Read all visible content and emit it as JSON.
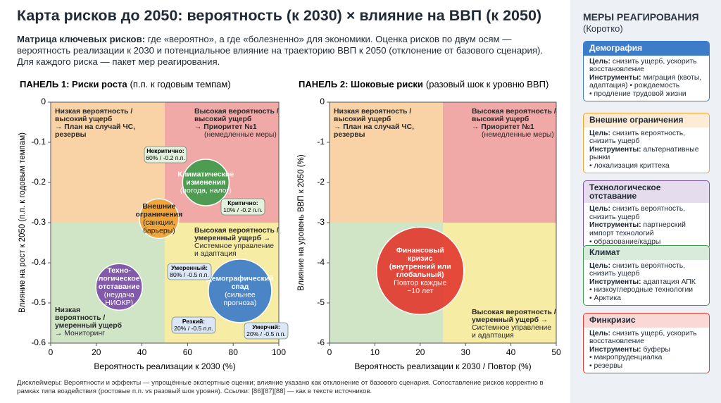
{
  "header": {
    "title": "Карта рисков до 2050: вероятность (к 2030) × влияние на ВВП (к 2050)",
    "intro_bold": "Матрица ключевых рисков:",
    "intro_text": "где «вероятно», а где «болезненно» для экономики. Оценка рисков по двум осям — вероятность реализации к 2030 и потенциальное влияние на траекторию ВВП к 2050 (отклонение от базового сценария). Для каждого риска — пакет мер реагирования."
  },
  "chart_data": [
    {
      "type": "bubble",
      "title_bold": "ПАНЕЛЬ 1: Риски роста",
      "title_note": "(п.п. к годовым темпам)",
      "x_label": "Вероятность реализации к 2030 (%)",
      "y_label": "Влияние на рост к 2050 (п.п. к годовым темпам)",
      "xlim": [
        0,
        100
      ],
      "ylim": [
        -0.6,
        0
      ],
      "xticks": [
        0,
        20,
        40,
        60,
        80,
        100
      ],
      "yticks": [
        0,
        -0.1,
        -0.2,
        -0.3,
        -0.4,
        -0.5,
        -0.6
      ],
      "quadrants": [
        {
          "x": [
            0,
            50
          ],
          "y": [
            -0.3,
            0
          ],
          "color": "#f9d3a6",
          "bold_lines": [
            "Низкая вероятность /",
            "высокий ущерб",
            "→ План на случай ЧС,",
            "резервы"
          ],
          "lines": []
        },
        {
          "x": [
            50,
            100
          ],
          "y": [
            -0.3,
            0
          ],
          "color": "#f0a9a6",
          "bold_lines": [
            "Высокая вероятность /",
            "высокий ущерб",
            "→ Приоритет №1"
          ],
          "lines": [
            "(немедленные меры)"
          ]
        },
        {
          "x": [
            0,
            50
          ],
          "y": [
            -0.6,
            -0.3
          ],
          "color": "#cfe5c6",
          "bold_lines": [
            "Низкая",
            "вероятность /",
            "умеренный ущерб"
          ],
          "lines": [
            "→ Мониторинг"
          ]
        },
        {
          "x": [
            50,
            100
          ],
          "y": [
            -0.6,
            -0.3
          ],
          "color": "#f7eca4",
          "bold_lines": [
            "Высокая вероятность /",
            "умеренный ущерб →"
          ],
          "lines": [
            "Системное управление",
            "и адаптация"
          ]
        }
      ],
      "points": [
        {
          "x": 68,
          "y": -0.2,
          "size": 33,
          "color": "#3f9b4b",
          "text_color": "#ffffff",
          "label": [
            "Климатические",
            "изменения"
          ],
          "note": [
            "(погода, налог)"
          ]
        },
        {
          "x": 47.5,
          "y": -0.29,
          "size": 28,
          "color": "#f0a232",
          "text_color": "#222222",
          "label": [
            "Внешние",
            "ограничения"
          ],
          "note": [
            "(санкции,",
            "барьеры)"
          ]
        },
        {
          "x": 30,
          "y": -0.46,
          "size": 33,
          "color": "#7b4ea6",
          "text_color": "#ffffff",
          "label": [
            "Техно-",
            "логическое",
            "отставание"
          ],
          "note": [
            "(неудача",
            "НИОКР)"
          ]
        },
        {
          "x": 83,
          "y": -0.47,
          "size": 45,
          "color": "#3d7cc9",
          "text_color": "#ffffff",
          "label": [
            "Демографический",
            "спад"
          ],
          "note": [
            "(сильнее",
            "прогноза)"
          ]
        }
      ],
      "annotations": [
        {
          "lines": [
            "Некритично:",
            "60% / -0.2 п.п."
          ],
          "color": "#e2f0dc"
        },
        {
          "lines": [
            "Критично:",
            "10% / -0.2 п.п."
          ],
          "color": "#e2f0dc"
        },
        {
          "lines": [
            "Умеренный:",
            "80% / -0.5 п.п."
          ],
          "color": "#dbe7f6"
        },
        {
          "lines": [
            "Резкий:",
            "20% / -0.5 п.п."
          ],
          "color": "#dbe7f6"
        },
        {
          "lines": [
            "Умерчий:",
            "20% / -0.5 п.п."
          ],
          "color": "#dbe7f6"
        }
      ]
    },
    {
      "type": "bubble",
      "title_bold": "ПАНЕЛЬ 2: Шоковые риски",
      "title_note": "(разовый шок к уровню ВВП)",
      "x_label": "Вероятность реализации к 2030 / Повтор (%)",
      "y_label": "Влияние на уровень ВВП к 2050 (%)",
      "xlim": [
        0,
        50
      ],
      "ylim": [
        -6,
        0
      ],
      "xticks": [
        0,
        10,
        20,
        30,
        40,
        50
      ],
      "yticks": [
        0,
        -1,
        -2,
        -3,
        -4,
        -5,
        -6
      ],
      "quadrants": [
        {
          "x": [
            0,
            25
          ],
          "y": [
            -3,
            0
          ],
          "color": "#f9d3a6",
          "bold_lines": [
            "Низкая вероятность /",
            "высокий ущерб",
            "→ План на случай ЧС,",
            "резервы"
          ],
          "lines": []
        },
        {
          "x": [
            25,
            50
          ],
          "y": [
            -3,
            0
          ],
          "color": "#f0a9a6",
          "bold_lines": [
            "Высокая вероятность /",
            "высокий ущерб",
            "→ Приоритет №1"
          ],
          "lines": [
            "(немедленные меры)"
          ]
        },
        {
          "x": [
            0,
            25
          ],
          "y": [
            -6,
            -3
          ],
          "color": "#cfe5c6",
          "bold_lines": [],
          "lines": []
        },
        {
          "x": [
            25,
            50
          ],
          "y": [
            -6,
            -3
          ],
          "color": "#f7eca4",
          "bold_lines": [
            "Высокая вероятность /",
            "умеренный ущерб →"
          ],
          "lines": [
            "Системное управление",
            "и адаптация"
          ]
        }
      ],
      "points": [
        {
          "x": 20,
          "y": -4.2,
          "size": 62,
          "color": "#e23b30",
          "text_color": "#ffffff",
          "label": [
            "Финансовый",
            "кризис",
            "(внутренний или",
            "глобальный)"
          ],
          "note": [
            "Повтор каждые",
            "~10 лет"
          ]
        }
      ],
      "annotations": []
    }
  ],
  "disclaimer": "Дисклеймеры: Вероятности и эффекты — упрощённые экспертные оценки; влияние указано как отклонение от базового сценария. Сопоставление рисков корректно в рамках типа воздействия (ростовые п.п. vs разовый шок уровня). Ссылки: [86][87][88] — как в тексте источников.",
  "sidebar": {
    "title": "МЕРЫ РЕАГИРОВАНИЯ",
    "subtitle": "(Коротко)",
    "goal_label": "Цель:",
    "tools_label": "Инструменты:",
    "cards": [
      {
        "title": "Демография",
        "color": "#3d7cc9",
        "goal": "снизить ущерб, ускорить восстановление",
        "tools": "миграция (квоты, адаптация) • рождаемость",
        "bullets": [
          "продление трудовой жизни"
        ]
      },
      {
        "title": "Внешние ограничения",
        "color": "#f0a232",
        "goal": "снизить вероятность, снизить ущерб",
        "tools": "альтернативные рынки",
        "bullets": [
          "локализация криттеха"
        ]
      },
      {
        "title": "Технологическое отставание",
        "color": "#7b4ea6",
        "goal": "снизить вероятность, снизить ущерб",
        "tools": "партнерский импорт технологий",
        "bullets": [
          "образование/кадры"
        ]
      },
      {
        "title": "Климат",
        "color": "#3f9b4b",
        "goal": "снизить вероятность, снизить ущерб",
        "tools": "адаптация АПК",
        "bullets": [
          "низкоуглеродные технологии",
          "Арктика"
        ]
      },
      {
        "title": "Финкризис",
        "color": "#e23b30",
        "goal": "снизить ущерб, ускорить восстановление",
        "tools": "буферы",
        "bullets": [
          "макропруденциалка",
          "резервы"
        ]
      }
    ]
  }
}
